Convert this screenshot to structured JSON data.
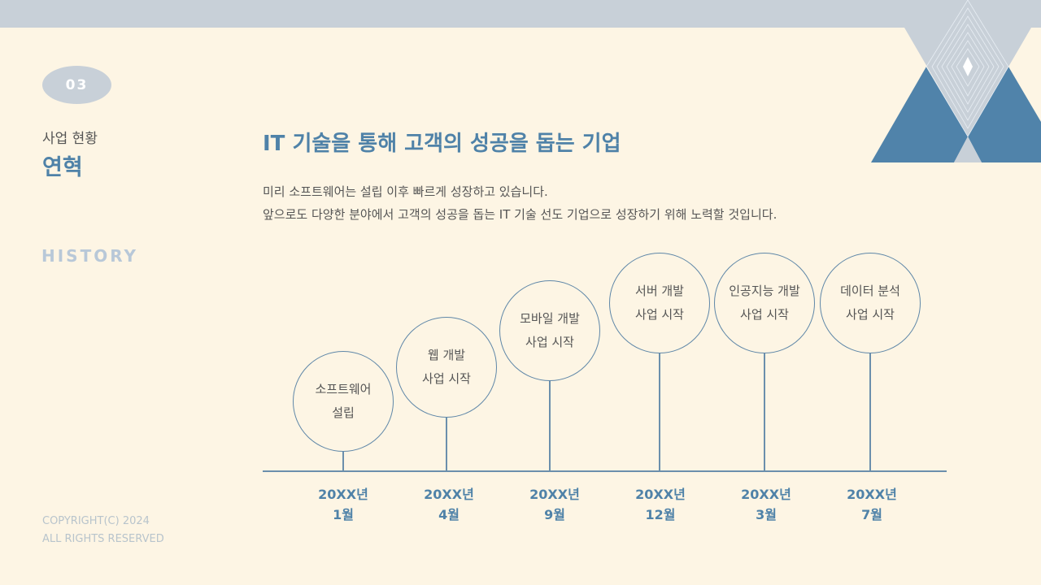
{
  "sidebar": {
    "number": "03",
    "subtitle": "사업 현황",
    "section": "연혁",
    "english": "HISTORY",
    "copyright": [
      "COPYRIGHT(C) 2024",
      "ALL RIGHTS RESERVED"
    ]
  },
  "main": {
    "title": "IT 기술을 통해 고객의 성공을 돕는 기업",
    "description": [
      "미리 소프트웨어는 설립 이후 빠르게 성장하고 있습니다.",
      "앞으로도 다양한 분야에서 고객의 성공을 돕는 IT 기술 선도 기업으로 성장하기 위해 노력할 것입니다."
    ]
  },
  "timeline": [
    {
      "event": [
        "소프트웨어",
        "설립"
      ],
      "date": [
        "20XX년",
        "1월"
      ]
    },
    {
      "event": [
        "웹 개발",
        "사업 시작"
      ],
      "date": [
        "20XX년",
        "4월"
      ]
    },
    {
      "event": [
        "모바일 개발",
        "사업 시작"
      ],
      "date": [
        "20XX년",
        "9월"
      ]
    },
    {
      "event": [
        "서버 개발",
        "사업 시작"
      ],
      "date": [
        "20XX년",
        "12월"
      ]
    },
    {
      "event": [
        "인공지능 개발",
        "사업 시작"
      ],
      "date": [
        "20XX년",
        "3월"
      ]
    },
    {
      "event": [
        "데이터 분석",
        "사업 시작"
      ],
      "date": [
        "20XX년",
        "7월"
      ]
    }
  ],
  "colors": {
    "background": "#fdf5e4",
    "accent": "#4f82a8",
    "gray": "#c8d0d8"
  }
}
